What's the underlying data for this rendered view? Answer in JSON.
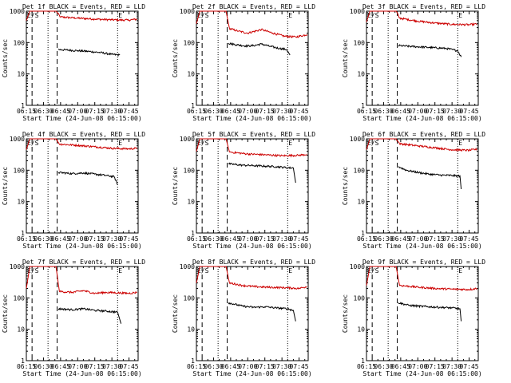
{
  "figure": {
    "colors": {
      "events": "#000000",
      "lld": "#cc0000",
      "axes": "#000000"
    },
    "xlabel": "Start Time (24-Jun-08 06:15:00)",
    "ylabel": "Counts/sec",
    "x_tick_labels": [
      "06:15",
      "06:30",
      "06:45",
      "07:00",
      "07:15",
      "07:30",
      "07:45"
    ],
    "y_tick_labels": [
      "1",
      "10",
      "100",
      "1000"
    ],
    "marker_s": "E/S",
    "marker_e": "E"
  },
  "chart_data": [
    {
      "type": "line",
      "title": "Det 1f BLACK = Events, RED = LLD",
      "xlabel": "Start Time (24-Jun-08 06:15:00)",
      "ylabel": "Counts/sec",
      "xlim": [
        "06:15",
        "07:53"
      ],
      "ylim": [
        1,
        1000
      ],
      "yscale": "log",
      "grid": false,
      "dashed_lines": [
        "06:20",
        "06:42"
      ],
      "dotted_lines": [
        "06:34",
        "07:35"
      ],
      "series": [
        {
          "name": "Events",
          "color": "#000000",
          "points": [
            [
              "06:43",
              60
            ],
            [
              "06:50",
              58
            ],
            [
              "07:00",
              55
            ],
            [
              "07:10",
              52
            ],
            [
              "07:20",
              48
            ],
            [
              "07:30",
              42
            ],
            [
              "07:37",
              40
            ]
          ]
        },
        {
          "name": "LLD",
          "color": "#cc0000",
          "points": [
            [
              "06:15",
              500
            ],
            [
              "06:18",
              1000
            ],
            [
              "06:22",
              1000
            ],
            [
              "06:38",
              1000
            ],
            [
              "06:41",
              1000
            ],
            [
              "06:45",
              650
            ],
            [
              "07:00",
              600
            ],
            [
              "07:15",
              560
            ],
            [
              "07:30",
              530
            ],
            [
              "07:45",
              520
            ],
            [
              "07:52",
              560
            ]
          ]
        }
      ]
    },
    {
      "type": "line",
      "title": "Det 2f BLACK = Events, RED = LLD",
      "xlabel": "Start Time (24-Jun-08 06:15:00)",
      "ylabel": "Counts/sec",
      "xlim": [
        "06:15",
        "07:53"
      ],
      "ylim": [
        1,
        1000
      ],
      "yscale": "log",
      "grid": false,
      "dashed_lines": [
        "06:20",
        "06:42"
      ],
      "dotted_lines": [
        "06:34",
        "07:35"
      ],
      "series": [
        {
          "name": "Events",
          "color": "#000000",
          "points": [
            [
              "06:43",
              95
            ],
            [
              "06:50",
              85
            ],
            [
              "06:58",
              78
            ],
            [
              "07:05",
              80
            ],
            [
              "07:12",
              90
            ],
            [
              "07:20",
              75
            ],
            [
              "07:28",
              65
            ],
            [
              "07:34",
              60
            ],
            [
              "07:37",
              40
            ]
          ]
        },
        {
          "name": "LLD",
          "color": "#cc0000",
          "points": [
            [
              "06:15",
              400
            ],
            [
              "06:18",
              1000
            ],
            [
              "06:22",
              1000
            ],
            [
              "06:38",
              1000
            ],
            [
              "06:41",
              1000
            ],
            [
              "06:44",
              280
            ],
            [
              "06:52",
              230
            ],
            [
              "07:00",
              200
            ],
            [
              "07:12",
              260
            ],
            [
              "07:22",
              200
            ],
            [
              "07:32",
              160
            ],
            [
              "07:42",
              150
            ],
            [
              "07:52",
              180
            ]
          ]
        }
      ]
    },
    {
      "type": "line",
      "title": "Det 3f BLACK = Events, RED = LLD",
      "xlabel": "Start Time (24-Jun-08 06:15:00)",
      "ylabel": "Counts/sec",
      "xlim": [
        "06:15",
        "07:53"
      ],
      "ylim": [
        1,
        1000
      ],
      "yscale": "log",
      "grid": false,
      "dashed_lines": [
        "06:20",
        "06:42"
      ],
      "dotted_lines": [
        "06:34",
        "07:35"
      ],
      "series": [
        {
          "name": "Events",
          "color": "#000000",
          "points": [
            [
              "06:43",
              80
            ],
            [
              "06:55",
              75
            ],
            [
              "07:10",
              70
            ],
            [
              "07:25",
              65
            ],
            [
              "07:35",
              55
            ],
            [
              "07:38",
              35
            ]
          ]
        },
        {
          "name": "LLD",
          "color": "#cc0000",
          "points": [
            [
              "06:15",
              450
            ],
            [
              "06:18",
              1000
            ],
            [
              "06:22",
              1000
            ],
            [
              "06:38",
              1000
            ],
            [
              "06:41",
              1000
            ],
            [
              "06:44",
              600
            ],
            [
              "07:00",
              480
            ],
            [
              "07:15",
              420
            ],
            [
              "07:30",
              380
            ],
            [
              "07:45",
              370
            ],
            [
              "07:52",
              390
            ]
          ]
        }
      ]
    },
    {
      "type": "line",
      "title": "Det 4f BLACK = Events, RED = LLD",
      "xlabel": "Start Time (24-Jun-08 06:15:00)",
      "ylabel": "Counts/sec",
      "xlim": [
        "06:15",
        "07:53"
      ],
      "ylim": [
        1,
        1000
      ],
      "yscale": "log",
      "grid": false,
      "dashed_lines": [
        "06:20",
        "06:42"
      ],
      "dotted_lines": [
        "06:34",
        "07:35"
      ],
      "series": [
        {
          "name": "Events",
          "color": "#000000",
          "points": [
            [
              "06:43",
              85
            ],
            [
              "06:55",
              78
            ],
            [
              "07:05",
              82
            ],
            [
              "07:15",
              75
            ],
            [
              "07:25",
              68
            ],
            [
              "07:32",
              62
            ],
            [
              "07:35",
              35
            ]
          ]
        },
        {
          "name": "LLD",
          "color": "#cc0000",
          "points": [
            [
              "06:15",
              450
            ],
            [
              "06:18",
              1000
            ],
            [
              "06:22",
              1000
            ],
            [
              "06:38",
              1000
            ],
            [
              "06:41",
              1000
            ],
            [
              "06:44",
              680
            ],
            [
              "07:00",
              620
            ],
            [
              "07:15",
              560
            ],
            [
              "07:30",
              500
            ],
            [
              "07:45",
              480
            ],
            [
              "07:52",
              500
            ]
          ]
        }
      ]
    },
    {
      "type": "line",
      "title": "Det 5f BLACK = Events, RED = LLD",
      "xlabel": "Start Time (24-Jun-08 06:15:00)",
      "ylabel": "Counts/sec",
      "xlim": [
        "06:15",
        "07:53"
      ],
      "ylim": [
        1,
        1000
      ],
      "yscale": "log",
      "grid": false,
      "dashed_lines": [
        "06:20",
        "06:42"
      ],
      "dotted_lines": [
        "06:34",
        "07:35"
      ],
      "series": [
        {
          "name": "Events",
          "color": "#000000",
          "points": [
            [
              "06:43",
              160
            ],
            [
              "06:55",
              145
            ],
            [
              "07:05",
              140
            ],
            [
              "07:15",
              135
            ],
            [
              "07:25",
              130
            ],
            [
              "07:35",
              120
            ],
            [
              "07:40",
              118
            ],
            [
              "07:42",
              40
            ]
          ]
        },
        {
          "name": "LLD",
          "color": "#cc0000",
          "points": [
            [
              "06:15",
              400
            ],
            [
              "06:18",
              1000
            ],
            [
              "06:22",
              1000
            ],
            [
              "06:38",
              1000
            ],
            [
              "06:41",
              1000
            ],
            [
              "06:44",
              380
            ],
            [
              "07:00",
              330
            ],
            [
              "07:15",
              310
            ],
            [
              "07:30",
              290
            ],
            [
              "07:45",
              300
            ],
            [
              "07:52",
              320
            ]
          ]
        }
      ]
    },
    {
      "type": "line",
      "title": "Det 6f BLACK = Events, RED = LLD",
      "xlabel": "Start Time (24-Jun-08 06:15:00)",
      "ylabel": "Counts/sec",
      "xlim": [
        "06:15",
        "07:53"
      ],
      "ylim": [
        1,
        1000
      ],
      "yscale": "log",
      "grid": false,
      "dashed_lines": [
        "06:20",
        "06:42"
      ],
      "dotted_lines": [
        "06:34",
        "07:35"
      ],
      "series": [
        {
          "name": "Events",
          "color": "#000000",
          "points": [
            [
              "06:43",
              130
            ],
            [
              "06:50",
              100
            ],
            [
              "07:00",
              85
            ],
            [
              "07:10",
              75
            ],
            [
              "07:20",
              70
            ],
            [
              "07:30",
              68
            ],
            [
              "07:37",
              65
            ],
            [
              "07:38",
              25
            ]
          ]
        },
        {
          "name": "LLD",
          "color": "#cc0000",
          "points": [
            [
              "06:15",
              450
            ],
            [
              "06:18",
              1000
            ],
            [
              "06:22",
              1000
            ],
            [
              "06:38",
              1000
            ],
            [
              "06:41",
              1000
            ],
            [
              "06:44",
              700
            ],
            [
              "07:00",
              600
            ],
            [
              "07:15",
              520
            ],
            [
              "07:30",
              450
            ],
            [
              "07:45",
              430
            ],
            [
              "07:52",
              470
            ]
          ]
        }
      ]
    },
    {
      "type": "line",
      "title": "Det 7f BLACK = Events, RED = LLD",
      "xlabel": "Start Time (24-Jun-08 06:15:00)",
      "ylabel": "Counts/sec",
      "xlim": [
        "06:15",
        "07:53"
      ],
      "ylim": [
        1,
        1000
      ],
      "yscale": "log",
      "grid": false,
      "dashed_lines": [
        "06:20",
        "06:42"
      ],
      "dotted_lines": [
        "06:34",
        "07:35"
      ],
      "series": [
        {
          "name": "Events",
          "color": "#000000",
          "points": [
            [
              "06:43",
              45
            ],
            [
              "06:55",
              42
            ],
            [
              "07:05",
              45
            ],
            [
              "07:15",
              40
            ],
            [
              "07:25",
              38
            ],
            [
              "07:35",
              35
            ],
            [
              "07:38",
              15
            ]
          ]
        },
        {
          "name": "LLD",
          "color": "#cc0000",
          "points": [
            [
              "06:15",
              200
            ],
            [
              "06:18",
              1000
            ],
            [
              "06:22",
              1000
            ],
            [
              "06:38",
              1000
            ],
            [
              "06:41",
              1000
            ],
            [
              "06:44",
              160
            ],
            [
              "06:55",
              150
            ],
            [
              "07:05",
              170
            ],
            [
              "07:15",
              140
            ],
            [
              "07:25",
              150
            ],
            [
              "07:35",
              145
            ],
            [
              "07:45",
              140
            ],
            [
              "07:52",
              150
            ]
          ]
        }
      ]
    },
    {
      "type": "line",
      "title": "Det 8f BLACK = Events, RED = LLD",
      "xlabel": "Start Time (24-Jun-08 06:15:00)",
      "ylabel": "Counts/sec",
      "xlim": [
        "06:15",
        "07:53"
      ],
      "ylim": [
        1,
        1000
      ],
      "yscale": "log",
      "grid": false,
      "dashed_lines": [
        "06:20",
        "06:42"
      ],
      "dotted_lines": [
        "06:34",
        "07:35"
      ],
      "series": [
        {
          "name": "Events",
          "color": "#000000",
          "points": [
            [
              "06:43",
              70
            ],
            [
              "06:55",
              55
            ],
            [
              "07:05",
              50
            ],
            [
              "07:15",
              52
            ],
            [
              "07:25",
              48
            ],
            [
              "07:35",
              45
            ],
            [
              "07:40",
              40
            ],
            [
              "07:42",
              18
            ]
          ]
        },
        {
          "name": "LLD",
          "color": "#cc0000",
          "points": [
            [
              "06:15",
              300
            ],
            [
              "06:18",
              1000
            ],
            [
              "06:22",
              1000
            ],
            [
              "06:38",
              1000
            ],
            [
              "06:41",
              1000
            ],
            [
              "06:44",
              300
            ],
            [
              "06:55",
              250
            ],
            [
              "07:05",
              230
            ],
            [
              "07:15",
              220
            ],
            [
              "07:25",
              215
            ],
            [
              "07:35",
              210
            ],
            [
              "07:45",
              200
            ],
            [
              "07:52",
              230
            ]
          ]
        }
      ]
    },
    {
      "type": "line",
      "title": "Det 9f BLACK = Events, RED = LLD",
      "xlabel": "Start Time (24-Jun-08 06:15:00)",
      "ylabel": "Counts/sec",
      "xlim": [
        "06:15",
        "07:53"
      ],
      "ylim": [
        1,
        1000
      ],
      "yscale": "log",
      "grid": false,
      "dashed_lines": [
        "06:20",
        "06:42"
      ],
      "dotted_lines": [
        "06:34",
        "07:35"
      ],
      "series": [
        {
          "name": "Events",
          "color": "#000000",
          "points": [
            [
              "06:43",
              70
            ],
            [
              "06:52",
              58
            ],
            [
              "07:00",
              55
            ],
            [
              "07:10",
              52
            ],
            [
              "07:20",
              50
            ],
            [
              "07:30",
              48
            ],
            [
              "07:37",
              45
            ],
            [
              "07:38",
              18
            ]
          ]
        },
        {
          "name": "LLD",
          "color": "#cc0000",
          "points": [
            [
              "06:15",
              250
            ],
            [
              "06:18",
              1000
            ],
            [
              "06:22",
              1000
            ],
            [
              "06:38",
              1000
            ],
            [
              "06:41",
              1000
            ],
            [
              "06:44",
              250
            ],
            [
              "07:00",
              220
            ],
            [
              "07:15",
              200
            ],
            [
              "07:30",
              190
            ],
            [
              "07:45",
              185
            ],
            [
              "07:52",
              200
            ]
          ]
        }
      ]
    }
  ]
}
